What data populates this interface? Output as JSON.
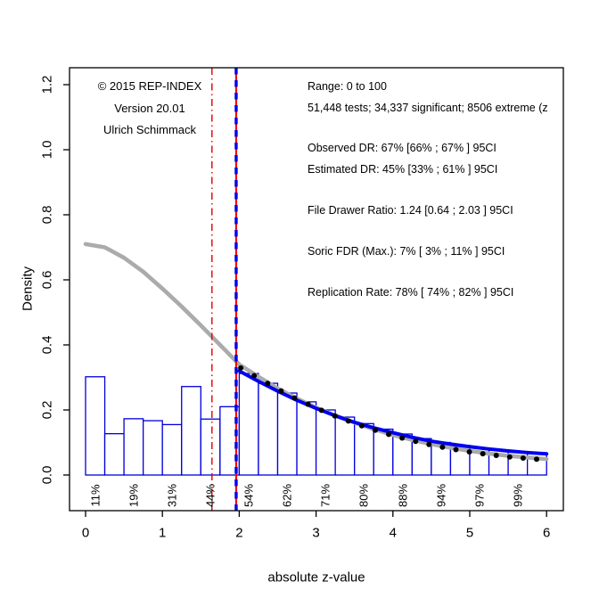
{
  "annotations": {
    "left_block": {
      "line1": "© 2015 REP-INDEX",
      "line2": "Version 20.01",
      "line3": "Ulrich Schimmack"
    },
    "right_block": {
      "range": "Range: 0 to 100",
      "tests": "51,448 tests; 34,337 significant; 8506 extreme (z",
      "observed_dr": "Observed DR: 67% [66% ; 67% ] 95CI",
      "estimated_dr": "Estimated DR: 45% [33% ; 61% ] 95CI",
      "file_drawer": "File Drawer Ratio: 1.24 [0.64 ; 2.03 ] 95CI",
      "soric_fdr": "Soric FDR (Max.): 7% [ 3% ; 11% ] 95CI",
      "replication_rate": "Replication Rate: 78% [ 74% ; 82% ] 95CI"
    }
  },
  "chart_data": {
    "type": "histogram+line",
    "title": "",
    "xlabel": "absolute z-value",
    "ylabel": "Density",
    "xlim": [
      0,
      6
    ],
    "ylim": [
      0,
      1.2
    ],
    "grid": false,
    "x_ticks": [
      "0",
      "1",
      "2",
      "3",
      "4",
      "5",
      "6"
    ],
    "y_ticks": [
      "0.0",
      "0.2",
      "0.4",
      "0.6",
      "0.8",
      "1.0",
      "1.2"
    ],
    "colors": {
      "bars": "#0000DD",
      "observed_gray": "#ABABAB",
      "predicted_blue": "#0000EE",
      "dots_black": "#000000",
      "critical_red": "#FF0000",
      "marginal_red": "#DD0000"
    },
    "bars": {
      "start": 0,
      "width": 0.25,
      "heights": [
        0.302,
        0.127,
        0.173,
        0.167,
        0.155,
        0.272,
        0.172,
        0.21,
        0.312,
        0.282,
        0.252,
        0.225,
        0.2,
        0.178,
        0.158,
        0.141,
        0.126,
        0.112,
        0.1,
        0.091,
        0.083,
        0.076,
        0.07,
        0.066
      ]
    },
    "percent_labels": {
      "positions": [
        0.125,
        0.625,
        1.125,
        1.625,
        2.125,
        2.625,
        3.125,
        3.625,
        4.125,
        4.625,
        5.125,
        5.625
      ],
      "labels": [
        "11%",
        "19%",
        "31%",
        "44%",
        "54%",
        "62%",
        "71%",
        "80%",
        "88%",
        "94%",
        "97%",
        "99%"
      ]
    },
    "series": [
      {
        "name": "observed-density",
        "legend": "observed density (gray)",
        "color": "#ABABAB",
        "x": [
          0,
          0.25,
          0.5,
          0.75,
          1.0,
          1.25,
          1.5,
          1.75,
          2.0,
          2.25,
          2.5,
          2.75,
          3.0,
          3.25,
          3.5,
          3.75,
          4.0,
          4.25,
          4.5,
          4.75,
          5.0,
          5.25,
          5.5,
          5.75,
          6.0
        ],
        "y": [
          0.71,
          0.7,
          0.668,
          0.625,
          0.573,
          0.518,
          0.46,
          0.4,
          0.34,
          0.302,
          0.266,
          0.235,
          0.207,
          0.183,
          0.161,
          0.141,
          0.123,
          0.108,
          0.095,
          0.084,
          0.074,
          0.066,
          0.059,
          0.054,
          0.049
        ]
      },
      {
        "name": "predicted-density",
        "legend": "model prediction (blue)",
        "color": "#0000EE",
        "x": [
          2.0,
          2.25,
          2.5,
          2.75,
          3.0,
          3.25,
          3.5,
          3.75,
          4.0,
          4.25,
          4.5,
          4.75,
          5.0,
          5.25,
          5.5,
          5.75,
          6.0
        ],
        "y": [
          0.32,
          0.288,
          0.258,
          0.23,
          0.205,
          0.182,
          0.162,
          0.145,
          0.13,
          0.116,
          0.104,
          0.095,
          0.087,
          0.08,
          0.074,
          0.069,
          0.065
        ]
      },
      {
        "name": "fit-dots",
        "legend": "fitted values (black dotted)",
        "color": "#000000",
        "x": [
          2.0,
          2.25,
          2.5,
          2.75,
          3.0,
          3.25,
          3.5,
          3.75,
          4.0,
          4.25,
          4.5,
          4.75,
          5.0,
          5.25,
          5.5,
          5.75,
          6.0
        ],
        "y": [
          0.332,
          0.298,
          0.264,
          0.233,
          0.206,
          0.181,
          0.159,
          0.139,
          0.121,
          0.106,
          0.092,
          0.081,
          0.071,
          0.063,
          0.056,
          0.051,
          0.046
        ]
      }
    ],
    "vlines": [
      {
        "name": "critical-z-line-red",
        "x": 1.96,
        "color": "#FF0000",
        "style": "solid"
      },
      {
        "name": "critical-z-line-blue-dashed",
        "x": 1.96,
        "color": "#0000EE",
        "style": "dashed"
      },
      {
        "name": "marginal-z-line-dashdot",
        "x": 1.645,
        "color": "#DD0000",
        "style": "dashdot"
      }
    ]
  }
}
